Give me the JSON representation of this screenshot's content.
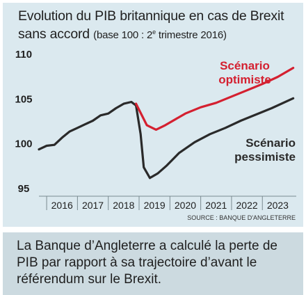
{
  "header": {
    "title_line1": "Evolution du PIB britannique en cas de Brexit",
    "title_line2_main": "sans accord ",
    "title_line2_paren_a": "(base 100 : 2",
    "title_line2_sup": "e",
    "title_line2_paren_b": " trimestre 2016)"
  },
  "source": "SOURCE : BANQUE D'ANGLETERRE",
  "caption": "La Banque d’Angleterre a calculé la perte de PIB par rapport à sa trajectoire d’avant le référendum sur le Brexit.",
  "colors": {
    "panel_bg": "#dbe9ef",
    "caption_bg": "#ccdae0",
    "optimistic": "#d42030",
    "pessimistic": "#2a2a2a"
  },
  "chart_data": {
    "type": "line",
    "title": "Evolution du PIB britannique en cas de Brexit sans accord (base 100 : 2e trimestre 2016)",
    "ylim": [
      95,
      110
    ],
    "yticks": [
      "110",
      "105",
      "100",
      "95"
    ],
    "xticks": [
      "2016",
      "2017",
      "2018",
      "2019",
      "2020",
      "2021",
      "2022",
      "2023"
    ],
    "xlim": [
      2015.75,
      2024.1
    ],
    "grid": false,
    "series": [
      {
        "name": "Scénario optimiste",
        "label_lines": [
          "Scénario",
          "optimiste"
        ],
        "color": "#d42030",
        "points": [
          [
            2018.9,
            104.4
          ],
          [
            2019.25,
            102.0
          ],
          [
            2019.55,
            101.5
          ],
          [
            2019.85,
            102.0
          ],
          [
            2020.5,
            103.3
          ],
          [
            2021.0,
            104.0
          ],
          [
            2021.5,
            104.5
          ],
          [
            2022.0,
            105.2
          ],
          [
            2022.5,
            105.9
          ],
          [
            2023.0,
            106.6
          ],
          [
            2023.5,
            107.4
          ],
          [
            2024.0,
            108.4
          ]
        ]
      },
      {
        "name": "Scénario pessimiste",
        "label_lines": [
          "Scénario",
          "pessimiste"
        ],
        "color": "#2a2a2a",
        "points": [
          [
            2015.75,
            99.3
          ],
          [
            2016.0,
            99.7
          ],
          [
            2016.25,
            99.8
          ],
          [
            2016.5,
            100.6
          ],
          [
            2016.75,
            101.3
          ],
          [
            2017.0,
            101.7
          ],
          [
            2017.25,
            102.1
          ],
          [
            2017.5,
            102.5
          ],
          [
            2017.75,
            103.1
          ],
          [
            2018.0,
            103.3
          ],
          [
            2018.25,
            103.9
          ],
          [
            2018.5,
            104.4
          ],
          [
            2018.75,
            104.6
          ],
          [
            2018.9,
            104.2
          ],
          [
            2019.05,
            101.0
          ],
          [
            2019.15,
            97.3
          ],
          [
            2019.35,
            96.1
          ],
          [
            2019.6,
            96.6
          ],
          [
            2019.9,
            97.5
          ],
          [
            2020.3,
            98.9
          ],
          [
            2020.8,
            100.1
          ],
          [
            2021.3,
            101.0
          ],
          [
            2021.8,
            101.7
          ],
          [
            2022.3,
            102.5
          ],
          [
            2022.8,
            103.2
          ],
          [
            2023.3,
            103.9
          ],
          [
            2024.0,
            105.0
          ]
        ]
      }
    ]
  }
}
